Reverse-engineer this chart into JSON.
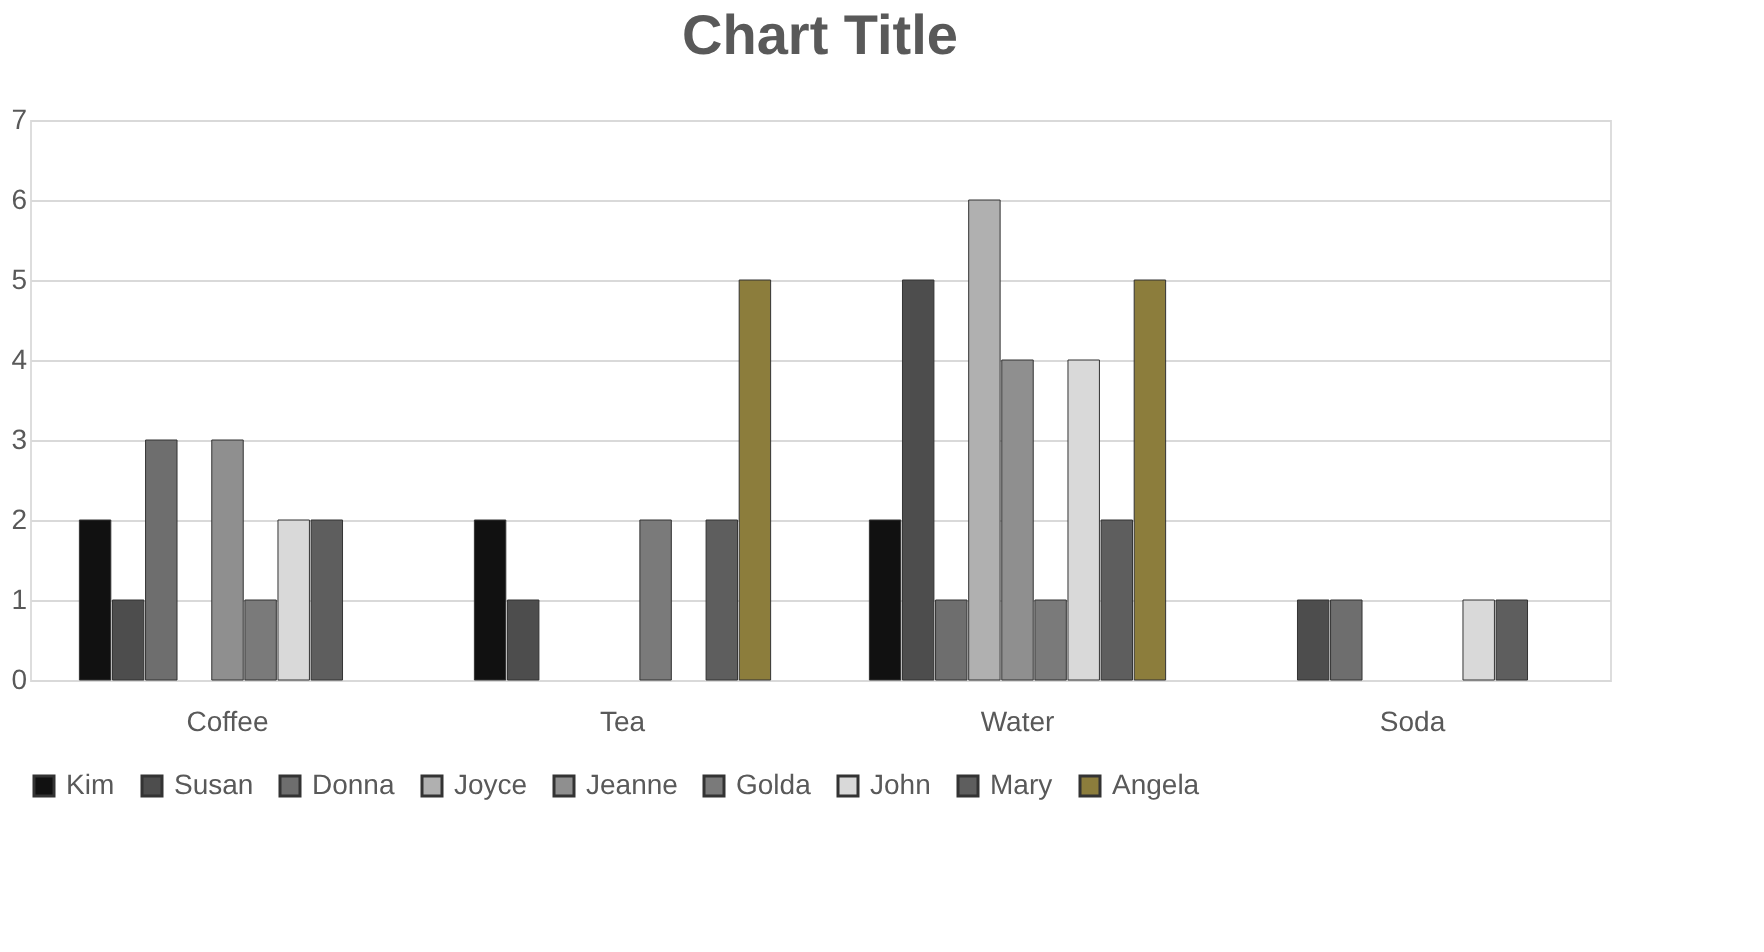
{
  "chart_data": {
    "type": "bar",
    "title": "Chart Title",
    "categories": [
      "Coffee",
      "Tea",
      "Water",
      "Soda"
    ],
    "series": [
      {
        "name": "Kim",
        "color": "#111111",
        "values": [
          2,
          2,
          2,
          null
        ]
      },
      {
        "name": "Susan",
        "color": "#4d4d4d",
        "values": [
          1,
          1,
          5,
          1
        ]
      },
      {
        "name": "Donna",
        "color": "#6e6e6e",
        "values": [
          3,
          null,
          1,
          1
        ]
      },
      {
        "name": "Joyce",
        "color": "#b0b0b0",
        "values": [
          null,
          null,
          6,
          null
        ]
      },
      {
        "name": "Jeanne",
        "color": "#8f8f8f",
        "values": [
          3,
          null,
          4,
          null
        ]
      },
      {
        "name": "Golda",
        "color": "#7a7a7a",
        "values": [
          1,
          2,
          1,
          null
        ]
      },
      {
        "name": "John",
        "color": "#d9d9d9",
        "values": [
          2,
          null,
          4,
          1
        ]
      },
      {
        "name": "Mary",
        "color": "#5e5e5e",
        "values": [
          2,
          2,
          2,
          1
        ]
      },
      {
        "name": "Angela",
        "color": "#8c7d3c",
        "values": [
          null,
          5,
          5,
          null
        ]
      }
    ],
    "ylim": [
      0,
      7
    ],
    "yticks": [
      0,
      1,
      2,
      3,
      4,
      5,
      6,
      7
    ],
    "grid": "y",
    "legend": "bottom"
  }
}
